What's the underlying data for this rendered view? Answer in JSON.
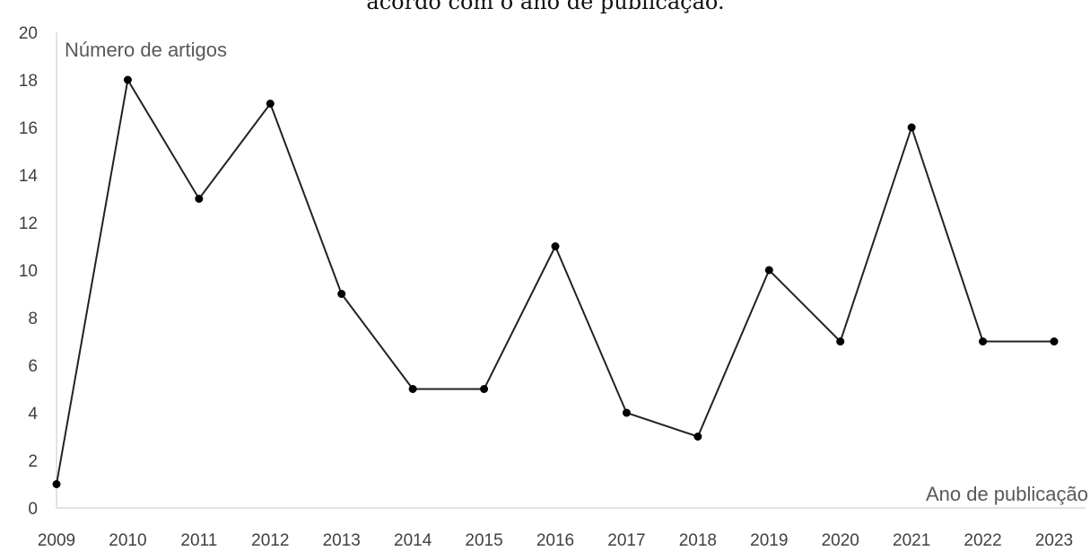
{
  "chart_data": {
    "type": "line",
    "title": "acordo com o ano de publicação.",
    "ylabel": "Número de artigos",
    "xlabel": "Ano de publicação",
    "ylim": [
      0,
      20
    ],
    "yticks": [
      "0",
      "2",
      "4",
      "6",
      "8",
      "10",
      "12",
      "14",
      "16",
      "18",
      "20"
    ],
    "categories": [
      "2009",
      "2010",
      "2011",
      "2012",
      "2013",
      "2014",
      "2015",
      "2016",
      "2017",
      "2018",
      "2019",
      "2020",
      "2021",
      "2022",
      "2023"
    ],
    "series": [
      {
        "values": [
          1,
          18,
          13,
          17,
          9,
          5,
          5,
          11,
          4,
          3,
          10,
          7,
          16,
          7,
          7
        ]
      }
    ],
    "grid": false,
    "legend": "none",
    "line_color": "#222222"
  }
}
